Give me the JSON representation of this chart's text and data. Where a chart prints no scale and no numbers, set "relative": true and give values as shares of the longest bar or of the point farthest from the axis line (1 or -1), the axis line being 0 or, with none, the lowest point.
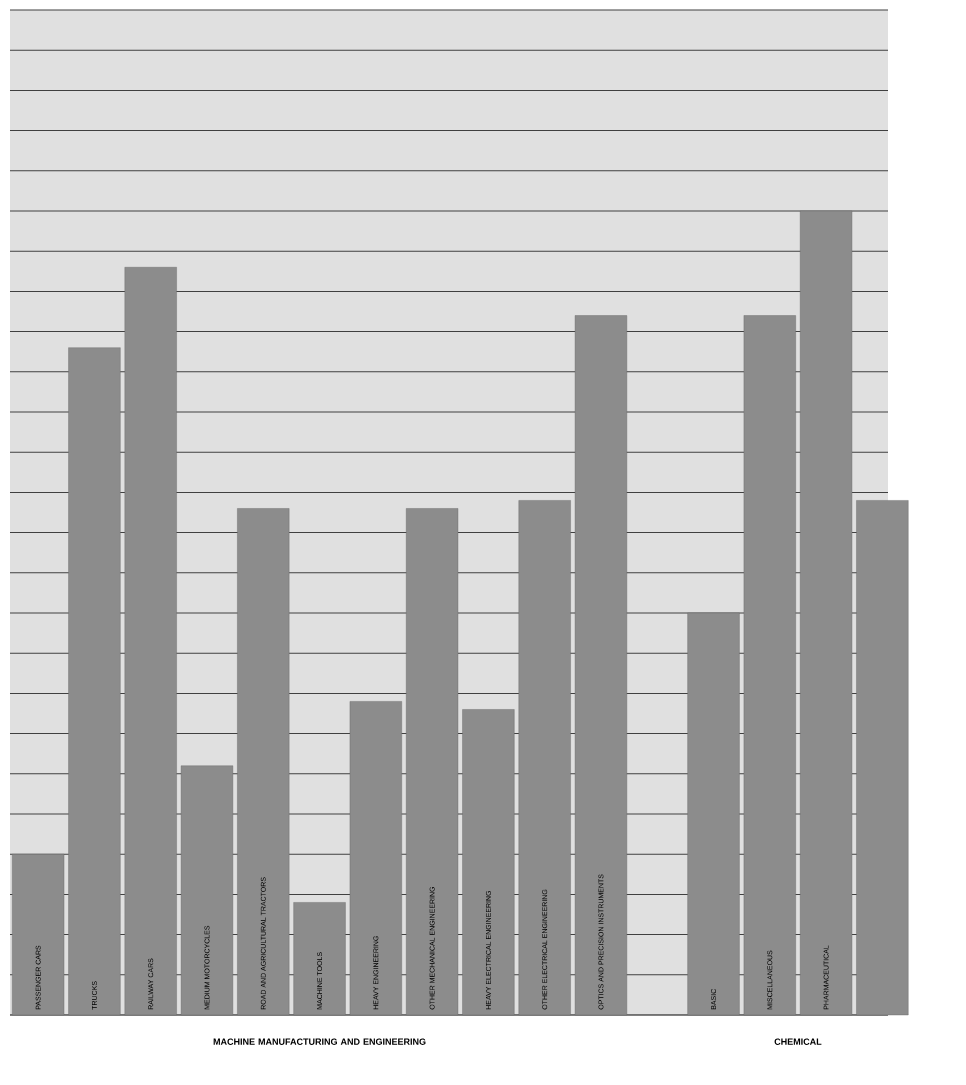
{
  "chart_data": {
    "type": "bar",
    "relative": true,
    "grid": "y",
    "color": "#8c8c8c",
    "categories": [
      "PASSENGER CARS",
      "TRUCKS",
      "RAILWAY CARS",
      "MEDIUM MOTORCYCLES",
      "ROAD AND AGRICULTURAL TRACTORS",
      "MACHINE TOOLS",
      "HEAVY ENGINEERING",
      "OTHER MECHANICAL ENGINEERING",
      "HEAVY ELECTRICAL ENGINEERING",
      "OTHER ELECTRICAL ENGINEERING",
      "OPTICS AND PRECISION INSTRUMENTS",
      null,
      "BASIC",
      "MISCELLANEOUS",
      "PHARMACEUTICAL",
      null
    ],
    "values": [
      0.2,
      0.83,
      0.93,
      0.31,
      0.63,
      0.14,
      0.39,
      0.63,
      0.38,
      0.64,
      0.87,
      null,
      0.5,
      0.87,
      1,
      0.64
    ],
    "annotations": [
      "MACHINE MANUFACTURING AND ENGINEERING",
      "CHEMICAL"
    ]
  }
}
